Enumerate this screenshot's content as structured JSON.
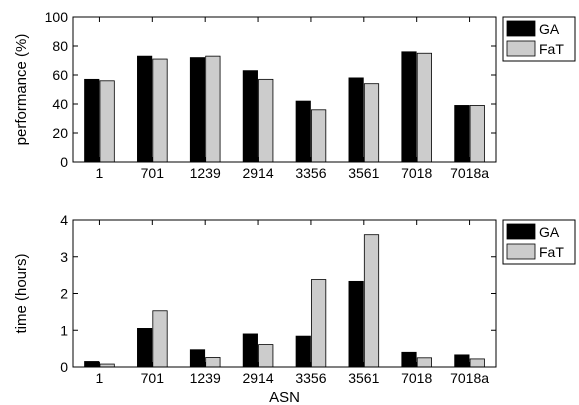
{
  "chart_data": [
    {
      "type": "bar",
      "categories": [
        "1",
        "701",
        "1239",
        "2914",
        "3356",
        "3561",
        "7018",
        "7018a"
      ],
      "series": [
        {
          "name": "GA",
          "color": "#000000",
          "values": [
            57,
            73,
            72,
            63,
            42,
            58,
            76,
            39
          ]
        },
        {
          "name": "FaT",
          "color": "#cccccc",
          "values": [
            56,
            71,
            73,
            57,
            36,
            54,
            75,
            39
          ]
        }
      ],
      "xlabel": "",
      "ylabel": "performance (%)",
      "ylim": [
        0,
        100
      ],
      "yticks": [
        0,
        20,
        40,
        60,
        80,
        100
      ],
      "grid": false,
      "legend": "top-right"
    },
    {
      "type": "bar",
      "categories": [
        "1",
        "701",
        "1239",
        "2914",
        "3356",
        "3561",
        "7018",
        "7018a"
      ],
      "series": [
        {
          "name": "GA",
          "color": "#000000",
          "values": [
            0.15,
            1.05,
            0.47,
            0.9,
            0.84,
            2.33,
            0.4,
            0.33
          ]
        },
        {
          "name": "FaT",
          "color": "#cccccc",
          "values": [
            0.08,
            1.53,
            0.26,
            0.61,
            2.38,
            3.6,
            0.25,
            0.22
          ]
        }
      ],
      "xlabel": "ASN",
      "ylabel": "time (hours)",
      "ylim": [
        0,
        4
      ],
      "yticks": [
        0,
        1,
        2,
        3,
        4
      ],
      "grid": false,
      "legend": "top-right"
    }
  ]
}
